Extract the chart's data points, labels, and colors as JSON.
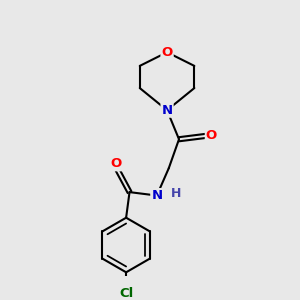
{
  "background_color": "#e8e8e8",
  "atom_colors": {
    "C": "#000000",
    "N": "#0000cc",
    "O": "#ff0000",
    "Cl": "#006600",
    "H": "#4444aa"
  },
  "bond_color": "#000000",
  "bond_width": 1.5,
  "figsize": [
    3.0,
    3.0
  ],
  "dpi": 100,
  "font_size": 9.5
}
